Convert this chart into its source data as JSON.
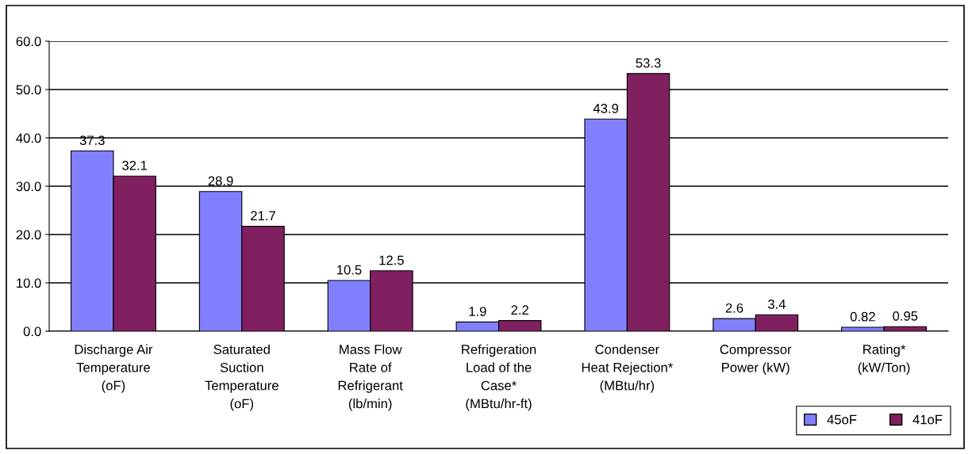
{
  "chart_data": {
    "type": "bar",
    "categories": [
      "Discharge Air\nTemperature\n(oF)",
      "Saturated\nSuction\nTemperature\n(oF)",
      "Mass Flow\nRate of\nRefrigerant\n(lb/min)",
      "Refrigeration\nLoad of the\nCase*\n(MBtu/hr-ft)",
      "Condenser\nHeat Rejection*\n(MBtu/hr)",
      "Compressor\nPower (kW)",
      "Rating*\n(kW/Ton)"
    ],
    "series": [
      {
        "name": "45oF",
        "color": "#8080ff",
        "values": [
          37.3,
          28.9,
          10.5,
          1.9,
          43.9,
          2.6,
          0.82
        ]
      },
      {
        "name": "41oF",
        "color": "#802060",
        "values": [
          32.1,
          21.7,
          12.5,
          2.2,
          53.3,
          3.4,
          0.95
        ]
      }
    ],
    "ylim": [
      0,
      60
    ],
    "yticks": [
      {
        "value": 0,
        "label": "0.0"
      },
      {
        "value": 10,
        "label": "10.0"
      },
      {
        "value": 20,
        "label": "20.0"
      },
      {
        "value": 30,
        "label": "30.0"
      },
      {
        "value": 40,
        "label": "40.0"
      },
      {
        "value": 50,
        "label": "50.0"
      },
      {
        "value": 60,
        "label": "60.0"
      }
    ],
    "grid": "y",
    "legend": "bottom right",
    "data_labels": true
  }
}
